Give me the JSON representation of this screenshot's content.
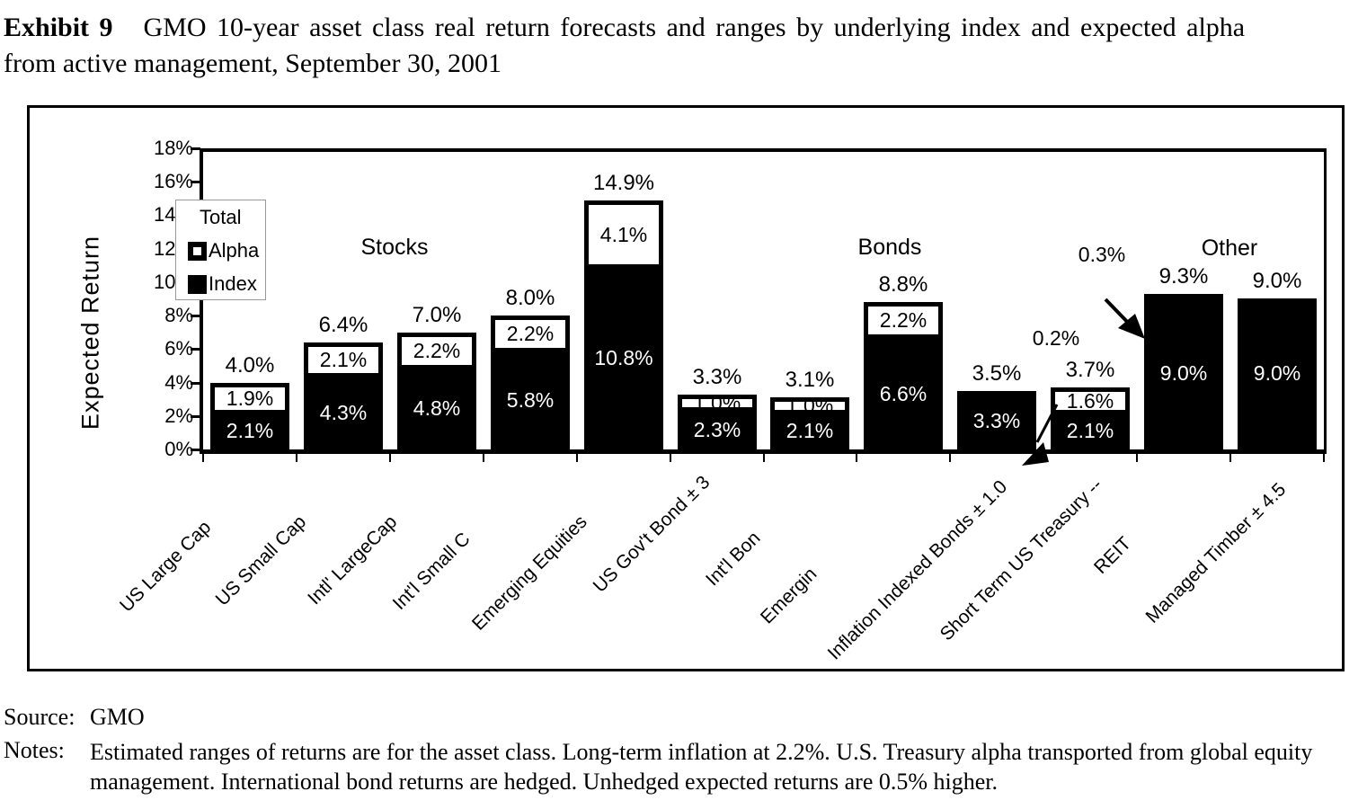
{
  "title": {
    "exhibit": "Exhibit 9",
    "line1": "GMO 10-year asset class real return forecasts and ranges by underlying index and expected alpha",
    "line2": "from active management, September 30, 2001"
  },
  "chart_data": {
    "type": "bar",
    "stacked": true,
    "ylabel": "Expected Return",
    "ylim": [
      0,
      18
    ],
    "grid": false,
    "y_tick_labels": [
      "18%",
      "16%",
      "14%",
      "12%",
      "10%",
      "8%",
      "6%",
      "4%",
      "2%",
      "0%"
    ],
    "legend": {
      "title": "Total",
      "position": "upper-left",
      "entries": [
        {
          "label": "Alpha",
          "marker": "white-square"
        },
        {
          "label": "Index",
          "marker": "black-square"
        }
      ]
    },
    "sections": [
      {
        "label": "Stocks"
      },
      {
        "label": "Bonds"
      },
      {
        "label": "Other"
      }
    ],
    "categories": [
      "US Large Cap",
      "US Small Cap",
      "Intl' LargeCap",
      "Int'l Small C",
      "Emerging Equities",
      "US Gov't Bond ± 3",
      "Int'l Bon",
      "Emergin",
      "Inflation Indexed Bonds ± 1.0",
      "Short Term US Treasury --",
      "REIT",
      "Managed Timber ± 4.5"
    ],
    "series": [
      {
        "name": "Index",
        "values": [
          2.1,
          4.3,
          4.8,
          5.8,
          10.8,
          2.3,
          2.1,
          6.6,
          3.3,
          2.1,
          9.0,
          9.0
        ]
      },
      {
        "name": "Alpha",
        "values": [
          1.9,
          2.1,
          2.2,
          2.2,
          4.1,
          1.0,
          1.0,
          2.2,
          0.2,
          1.6,
          0.3,
          0.0
        ]
      }
    ],
    "total_labels": [
      "4.0%",
      "6.4%",
      "7.0%",
      "8.0%",
      "14.9%",
      "3.3%",
      "3.1%",
      "8.8%",
      "3.5%",
      "3.7%",
      "9.3%",
      "9.0%"
    ],
    "index_labels": [
      "2.1%",
      "4.3%",
      "4.8%",
      "5.8%",
      "10.8%",
      "2.3%",
      "2.1%",
      "6.6%",
      "3.3%",
      "2.1%",
      "9.0%",
      "9.0%"
    ],
    "alpha_labels": [
      "1.9%",
      "2.1%",
      "2.2%",
      "2.2%",
      "4.1%",
      "1.0%",
      "1.0%",
      "2.2%",
      "",
      "1.6%",
      "",
      ""
    ],
    "annotations": [
      {
        "text": "0.2%"
      },
      {
        "text": "0.3%"
      }
    ],
    "colors": {
      "index": "#000000",
      "alpha": "#ffffff",
      "text_on_index": "#ffffff",
      "text": "#000000"
    }
  },
  "footer": {
    "source_label": "Source:",
    "source_value": "GMO",
    "notes_label": "Notes:",
    "notes_line1": "Estimated ranges of returns are for the asset class.  Long-term inflation at 2.2%.  U.S. Treasury alpha transported from global equity",
    "notes_line2": "management.  International bond returns are hedged.  Unhedged expected returns are 0.5% higher."
  }
}
